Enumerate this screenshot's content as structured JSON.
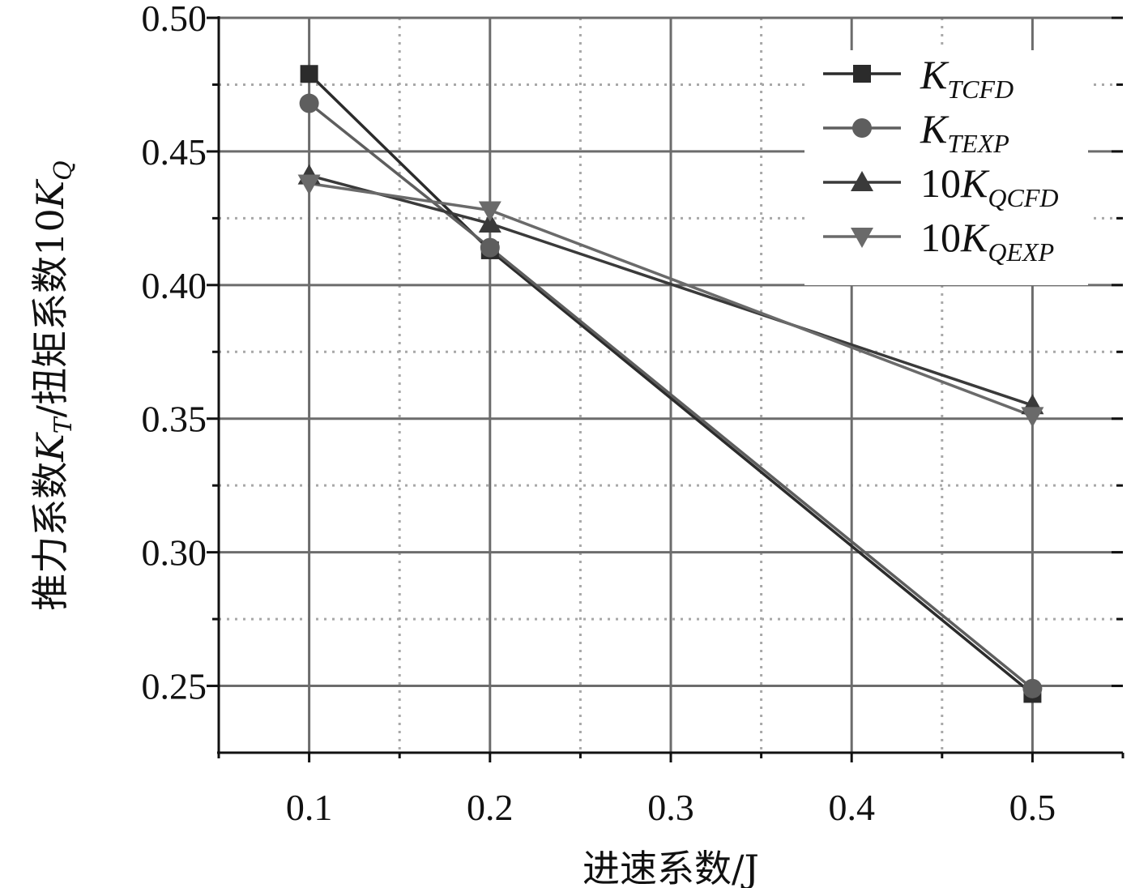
{
  "chart_data": {
    "type": "line",
    "x": [
      0.1,
      0.2,
      0.5
    ],
    "xlim": [
      0.05,
      0.55
    ],
    "ylim": [
      0.225,
      0.5
    ],
    "xticks": [
      0.1,
      0.2,
      0.3,
      0.4,
      0.5
    ],
    "xtick_labels": [
      "0.1",
      "0.2",
      "0.3",
      "0.4",
      "0.5"
    ],
    "yticks": [
      0.25,
      0.3,
      0.35,
      0.4,
      0.45,
      0.5
    ],
    "ytick_labels": [
      "0.25",
      "0.30",
      "0.35",
      "0.40",
      "0.45",
      "0.50"
    ],
    "xlabel": "进速系数/J",
    "ylabel": "推力系数K_T/扭矩系数10K_Q",
    "grid": true,
    "legend_position": "top-right",
    "series": [
      {
        "name": "K_TCFD",
        "prefix": "",
        "main": "K",
        "sub": "TCFD",
        "marker": "square",
        "color": "#2b2b2b",
        "values": [
          0.479,
          0.413,
          0.247
        ]
      },
      {
        "name": "K_TEXP",
        "prefix": "",
        "main": "K",
        "sub": "TEXP",
        "marker": "circle",
        "color": "#5e5e5e",
        "values": [
          0.468,
          0.414,
          0.249
        ]
      },
      {
        "name": "10K_QCFD",
        "prefix": "10",
        "main": "K",
        "sub": "QCFD",
        "marker": "triangle-up",
        "color": "#3a3a3a",
        "values": [
          0.441,
          0.423,
          0.355
        ]
      },
      {
        "name": "10K_QEXP",
        "prefix": "10",
        "main": "K",
        "sub": "QEXP",
        "marker": "triangle-down",
        "color": "#6a6a6a",
        "values": [
          0.438,
          0.428,
          0.351
        ]
      }
    ]
  }
}
